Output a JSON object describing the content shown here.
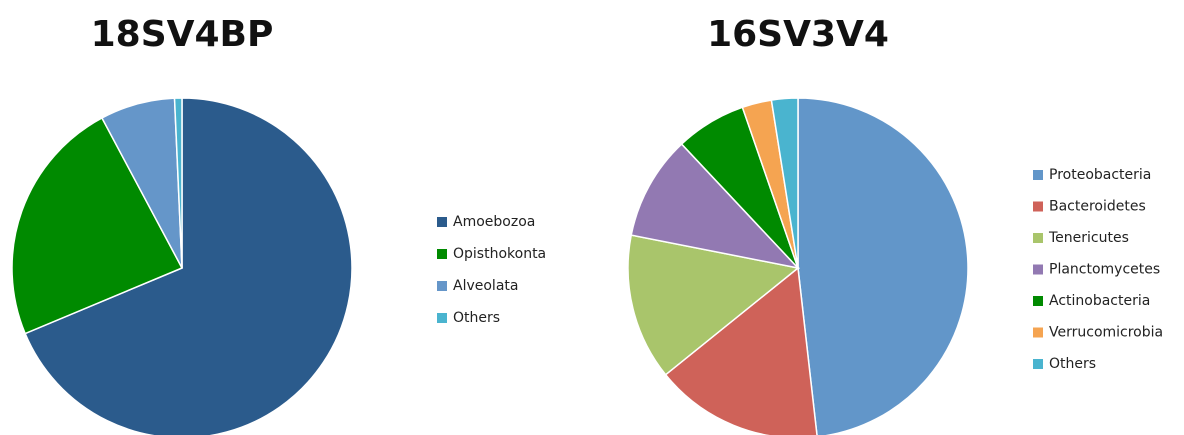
{
  "chart_data": [
    {
      "type": "pie",
      "title": "18SV4BP",
      "categories": [
        "Amoebozoa",
        "Opisthokonta",
        "Alveolata",
        "Others"
      ],
      "values": [
        68.7,
        23.5,
        7.1,
        0.7
      ],
      "colors": [
        "#2b5b8c",
        "#008a00",
        "#6596c9",
        "#4ab4cf"
      ],
      "legend": "right"
    },
    {
      "type": "pie",
      "title": "16SV3V4",
      "categories": [
        "Proteobacteria",
        "Bacteroidetes",
        "Tenericutes",
        "Planctomycetes",
        "Actinobacteria",
        "Verrucomicrobia",
        "Others"
      ],
      "values": [
        48.2,
        16.0,
        13.9,
        9.9,
        6.7,
        2.8,
        2.5
      ],
      "colors": [
        "#6296c9",
        "#cf6259",
        "#a9c56b",
        "#9279b2",
        "#008a00",
        "#f5a451",
        "#4ab4cf"
      ],
      "legend": "right"
    }
  ]
}
